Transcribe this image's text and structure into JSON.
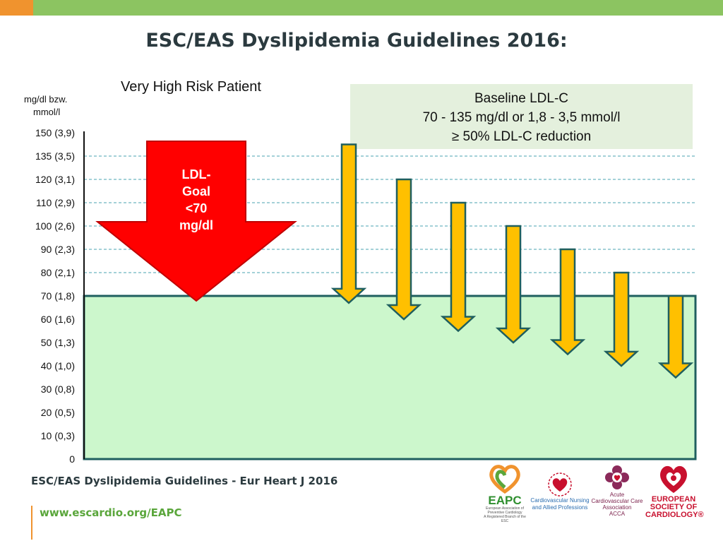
{
  "slide": {
    "title": "ESC/EAS Dyslipidemia Guidelines  2016:",
    "subtitle": "Very High Risk Patient",
    "y_unit_line1": "mg/dl bzw.",
    "y_unit_line2": "mmol/l",
    "baseline_box": {
      "line1": "Baseline LDL-C",
      "line2": "70 - 135 mg/dl or 1,8 - 3,5 mmol/l",
      "line3": "≥ 50% LDL-C reduction"
    },
    "goal_arrow_label": [
      "LDL-",
      "Goal",
      "<70",
      "mg/dl"
    ],
    "footer_reference": "ESC/EAS Dyslipidemia Guidelines - Eur Heart J 2016",
    "footer_url": "www.escardio.org/EAPC"
  },
  "logos": {
    "eapc_name": "EAPC",
    "eapc_sub": "European Association of Preventive Cardiology",
    "eapc_branch": "A Registered Branch of the ESC",
    "cnap_arc": "ESC COUNCIL",
    "cnap_name": "Cardiovascular Nursing and Allied Professions",
    "acca_name": "Acute Cardiovascular Care Association",
    "acca_abbr": "ACCA",
    "acca_branch": "A Registered Branch of the ESC",
    "esc_name": "EUROPEAN SOCIETY OF CARDIOLOGY®"
  },
  "colors": {
    "goal_zone": "#ccf7cc",
    "goal_zone_border": "#1f5f5f",
    "reduction_arrow": "#ffc000",
    "reduction_arrow_border": "#1f5f5f",
    "goal_arrow": "#ff0000",
    "gridline": "#4aa3b0"
  },
  "chart_data": {
    "type": "bar",
    "y_tick_labels": [
      "150 (3,9)",
      "135 (3,5)",
      "120 (3,1)",
      "110 (2,9)",
      "100 (2,6)",
      "90 (2,3)",
      "80 (2,1)",
      "70 (1,8)",
      "60 (1,6)",
      "50 (1,3)",
      "40 (1,0)",
      "30 (0,8)",
      "20 (0,5)",
      "10 (0,3)",
      "0"
    ],
    "ylim": [
      0,
      150
    ],
    "goal_level": 70,
    "reference_lines": [
      135,
      120,
      110,
      100,
      90,
      80
    ],
    "series": [
      {
        "values_start": [
          135,
          120,
          110,
          100,
          90,
          80,
          70
        ],
        "values_end": [
          67,
          60,
          55,
          50,
          45,
          40,
          35
        ]
      }
    ]
  }
}
